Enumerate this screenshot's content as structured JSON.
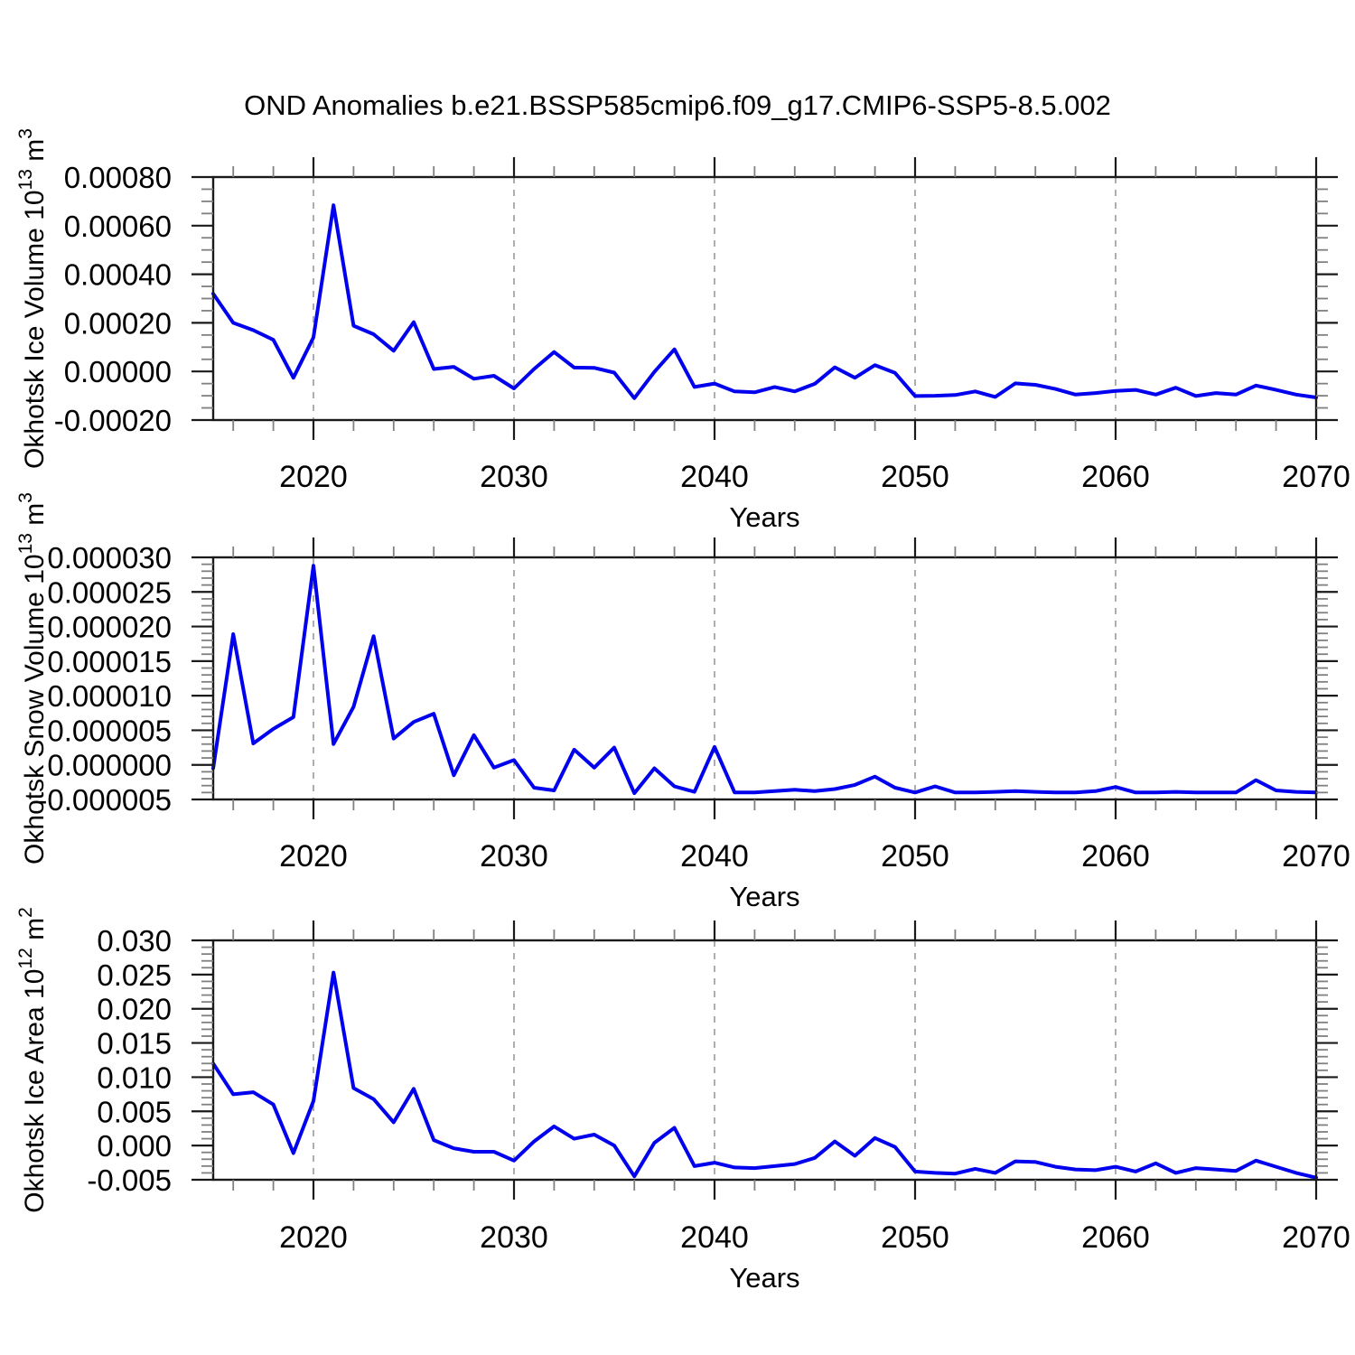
{
  "title": "OND Anomalies b.e21.BSSP585cmip6.f09_g17.CMIP6-SSP5-8.5.002",
  "xlabel": "Years",
  "colors": {
    "background": "#FFFFFF",
    "line": "#0000EE",
    "frame": "#1a1a1a",
    "major_tick": "#1a1a1a",
    "minor_tick": "#808080",
    "gridline": "#999999",
    "text": "#000000"
  },
  "x_axis": {
    "start": 2015,
    "end": 2070,
    "major_ticks": [
      2020,
      2030,
      2040,
      2050,
      2060,
      2070
    ],
    "minor_tick_first": 2016,
    "minor_tick_step": 2,
    "gridline_years": [
      2020,
      2030,
      2040,
      2050,
      2060
    ],
    "gridline_style": "dashed"
  },
  "chart_data": [
    {
      "type": "line",
      "name": "okhotsk-ice-volume",
      "ylabel": "Okhotsk Ice Volume 10^13 m^3",
      "ylabel_parts": [
        {
          "text": "Okhotsk Ice Volume 10"
        },
        {
          "text": "13",
          "sup": true
        },
        {
          "text": " m"
        },
        {
          "text": "3",
          "sup": true
        }
      ],
      "ylim": [
        -0.0002,
        0.0008
      ],
      "y_major_tick_labels": [
        "0.00080",
        "0.00060",
        "0.00040",
        "0.00020",
        "0.00000",
        "-0.00020"
      ],
      "y_major_tick_values": [
        0.0008,
        0.0006,
        0.0004,
        0.0002,
        0.0,
        -0.0002
      ],
      "y_minor_step": 5e-05,
      "grid": false,
      "legend": "none",
      "x": [
        2015,
        2016,
        2017,
        2018,
        2019,
        2020,
        2021,
        2022,
        2023,
        2024,
        2025,
        2026,
        2027,
        2028,
        2029,
        2030,
        2031,
        2032,
        2033,
        2034,
        2035,
        2036,
        2037,
        2038,
        2039,
        2040,
        2041,
        2042,
        2043,
        2044,
        2045,
        2046,
        2047,
        2048,
        2049,
        2050,
        2051,
        2052,
        2053,
        2054,
        2055,
        2056,
        2057,
        2058,
        2059,
        2060,
        2061,
        2062,
        2063,
        2064,
        2065,
        2066,
        2067,
        2068,
        2069,
        2070
      ],
      "values": [
        0.00032,
        0.0002,
        0.00017,
        0.00013,
        -2.6e-05,
        0.00014,
        0.000684,
        0.000188,
        0.000153,
        8.5e-05,
        0.000203,
        1e-05,
        1.9e-05,
        -3e-05,
        -1.8e-05,
        -7e-05,
        1e-05,
        8e-05,
        1.6e-05,
        1.5e-05,
        -5e-06,
        -0.00011,
        -2e-06,
        9.1e-05,
        -6.4e-05,
        -5e-05,
        -8.2e-05,
        -8.6e-05,
        -6.4e-05,
        -8.2e-05,
        -5.1e-05,
        1.7e-05,
        -2.6e-05,
        2.6e-05,
        -6e-06,
        -0.000101,
        -0.0001,
        -9.7e-05,
        -8.2e-05,
        -0.000105,
        -4.9e-05,
        -5.5e-05,
        -7.2e-05,
        -9.5e-05,
        -8.9e-05,
        -8e-05,
        -7.6e-05,
        -9.5e-05,
        -6.7e-05,
        -0.000101,
        -8.9e-05,
        -9.5e-05,
        -5.8e-05,
        -7.6e-05,
        -9.5e-05,
        -0.000107
      ]
    },
    {
      "type": "line",
      "name": "okhotsk-snow-volume",
      "ylabel": "Okhotsk Snow Volume 10^13 m^3",
      "ylabel_parts": [
        {
          "text": "Okhotsk Snow Volume 10"
        },
        {
          "text": "13",
          "sup": true
        },
        {
          "text": " m"
        },
        {
          "text": "3",
          "sup": true
        }
      ],
      "ylim": [
        -5e-06,
        3e-05
      ],
      "y_major_tick_labels": [
        "0.000030",
        "0.000025",
        "0.000020",
        "0.000015",
        "0.000010",
        "0.000005",
        "0.000000",
        "-0.000005"
      ],
      "y_major_tick_values": [
        3e-05,
        2.5e-05,
        2e-05,
        1.5e-05,
        1e-05,
        5e-06,
        0.0,
        -5e-06
      ],
      "y_minor_step": 1e-06,
      "grid": false,
      "legend": "none",
      "x": [
        2015,
        2016,
        2017,
        2018,
        2019,
        2020,
        2021,
        2022,
        2023,
        2024,
        2025,
        2026,
        2027,
        2028,
        2029,
        2030,
        2031,
        2032,
        2033,
        2034,
        2035,
        2036,
        2037,
        2038,
        2039,
        2040,
        2041,
        2042,
        2043,
        2044,
        2045,
        2046,
        2047,
        2048,
        2049,
        2050,
        2051,
        2052,
        2053,
        2054,
        2055,
        2056,
        2057,
        2058,
        2059,
        2060,
        2061,
        2062,
        2063,
        2064,
        2065,
        2066,
        2067,
        2068,
        2069,
        2070
      ],
      "values": [
        -5e-07,
        1.89e-05,
        3.1e-06,
        5.2e-06,
        6.9e-06,
        2.88e-05,
        3e-06,
        8.4e-06,
        1.86e-05,
        3.8e-06,
        6.2e-06,
        7.4e-06,
        -1.5e-06,
        4.3e-06,
        -4e-07,
        7e-07,
        -3.3e-06,
        -3.7e-06,
        2.2e-06,
        -4e-07,
        2.5e-06,
        -4.1e-06,
        -5e-07,
        -3.1e-06,
        -3.9e-06,
        2.6e-06,
        -4e-06,
        -4e-06,
        -3.8e-06,
        -3.6e-06,
        -3.8e-06,
        -3.5e-06,
        -2.9e-06,
        -1.7e-06,
        -3.3e-06,
        -4e-06,
        -3.1e-06,
        -4e-06,
        -4e-06,
        -3.9e-06,
        -3.8e-06,
        -3.9e-06,
        -4e-06,
        -4e-06,
        -3.8e-06,
        -3.2e-06,
        -4e-06,
        -4e-06,
        -3.9e-06,
        -4e-06,
        -4e-06,
        -4e-06,
        -2.2e-06,
        -3.7e-06,
        -3.9e-06,
        -4e-06
      ]
    },
    {
      "type": "line",
      "name": "okhotsk-ice-area",
      "ylabel": "Okhotsk Ice Area 10^12 m^2",
      "ylabel_parts": [
        {
          "text": "Okhotsk Ice Area 10"
        },
        {
          "text": "12",
          "sup": true
        },
        {
          "text": " m"
        },
        {
          "text": "2",
          "sup": true
        }
      ],
      "ylim": [
        -0.005,
        0.03
      ],
      "y_major_tick_labels": [
        "0.030",
        "0.025",
        "0.020",
        "0.015",
        "0.010",
        "0.005",
        "0.000",
        "-0.005"
      ],
      "y_major_tick_values": [
        0.03,
        0.025,
        0.02,
        0.015,
        0.01,
        0.005,
        0.0,
        -0.005
      ],
      "y_minor_step": 0.001,
      "grid": false,
      "legend": "none",
      "x": [
        2015,
        2016,
        2017,
        2018,
        2019,
        2020,
        2021,
        2022,
        2023,
        2024,
        2025,
        2026,
        2027,
        2028,
        2029,
        2030,
        2031,
        2032,
        2033,
        2034,
        2035,
        2036,
        2037,
        2038,
        2039,
        2040,
        2041,
        2042,
        2043,
        2044,
        2045,
        2046,
        2047,
        2048,
        2049,
        2050,
        2051,
        2052,
        2053,
        2054,
        2055,
        2056,
        2057,
        2058,
        2059,
        2060,
        2061,
        2062,
        2063,
        2064,
        2065,
        2066,
        2067,
        2068,
        2069,
        2070
      ],
      "values": [
        0.012,
        0.0075,
        0.0078,
        0.006,
        -0.0011,
        0.0065,
        0.0253,
        0.0084,
        0.0068,
        0.0034,
        0.0083,
        0.0008,
        -0.0004,
        -0.0009,
        -0.0009,
        -0.0022,
        0.0006,
        0.0028,
        0.001,
        0.0016,
        0.0,
        -0.0045,
        0.0004,
        0.0026,
        -0.003,
        -0.0025,
        -0.0032,
        -0.0033,
        -0.003,
        -0.0027,
        -0.0018,
        0.0006,
        -0.0015,
        0.0011,
        -0.0002,
        -0.0038,
        -0.004,
        -0.0041,
        -0.0034,
        -0.004,
        -0.0023,
        -0.0024,
        -0.0031,
        -0.0035,
        -0.0036,
        -0.0031,
        -0.0038,
        -0.0026,
        -0.004,
        -0.0033,
        -0.0035,
        -0.0037,
        -0.0022,
        -0.0031,
        -0.004,
        -0.0047
      ]
    }
  ]
}
